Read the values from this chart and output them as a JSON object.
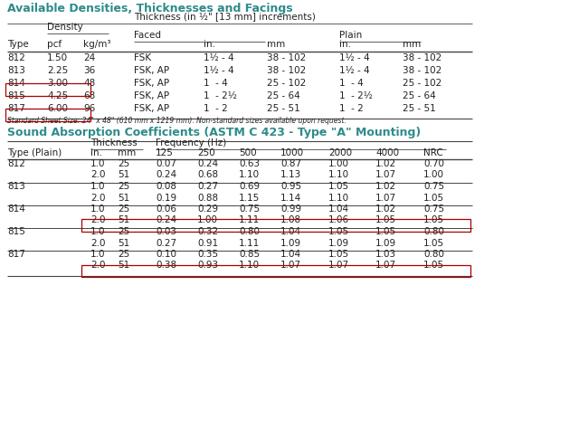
{
  "title1": "Available Densities, Thicknesses and Facings",
  "title2": "Sound Absorption Coefficients (ASTM C 423 - Type \"A\" Mounting)",
  "footnote": "Standard Sheet Size: 24\" x 48\" (610 mm x 1219 mm). Non-standard sizes available upon request.",
  "title_color": "#2e8b8b",
  "text_color": "#222222",
  "bg_color": "#ffffff",
  "table1": {
    "rows": [
      [
        "812",
        "1.50",
        "24",
        "FSK",
        "1½ - 4",
        "38 - 102",
        "1½ - 4",
        "38 - 102"
      ],
      [
        "813",
        "2.25",
        "36",
        "FSK, AP",
        "1½ - 4",
        "38 - 102",
        "1½ - 4",
        "38 - 102"
      ],
      [
        "814",
        "3.00",
        "48",
        "FSK, AP",
        "1  - 4",
        "25 - 102",
        "1  - 4",
        "25 - 102"
      ],
      [
        "815",
        "4.25",
        "68",
        "FSK, AP",
        "1  - 2½",
        "25 - 64",
        "1  - 2½",
        "25 - 64"
      ],
      [
        "817",
        "6.00",
        "96",
        "FSK, AP",
        "1  - 2",
        "25 - 51",
        "1  - 2",
        "25 - 51"
      ]
    ],
    "boxed_rows": [
      2,
      4
    ],
    "box_color": "#aa0000"
  },
  "table2": {
    "rows": [
      [
        "812",
        "1.0",
        "25",
        "0.07",
        "0.24",
        "0.63",
        "0.87",
        "1.00",
        "1.02",
        "0.70"
      ],
      [
        "",
        "2.0",
        "51",
        "0.24",
        "0.68",
        "1.10",
        "1.13",
        "1.10",
        "1.07",
        "1.00"
      ],
      [
        "813",
        "1.0",
        "25",
        "0.08",
        "0.27",
        "0.69",
        "0.95",
        "1.05",
        "1.02",
        "0.75"
      ],
      [
        "",
        "2.0",
        "51",
        "0.19",
        "0.88",
        "1.15",
        "1.14",
        "1.10",
        "1.07",
        "1.05"
      ],
      [
        "814",
        "1.0",
        "25",
        "0.06",
        "0.29",
        "0.75",
        "0.99",
        "1.04",
        "1.02",
        "0.75"
      ],
      [
        "",
        "2.0",
        "51",
        "0.24",
        "1.00",
        "1.11",
        "1.08",
        "1.06",
        "1.05",
        "1.05"
      ],
      [
        "815",
        "1.0",
        "25",
        "0.03",
        "0.32",
        "0.80",
        "1.04",
        "1.05",
        "1.05",
        "0.80"
      ],
      [
        "",
        "2.0",
        "51",
        "0.27",
        "0.91",
        "1.11",
        "1.09",
        "1.09",
        "1.09",
        "1.05"
      ],
      [
        "817",
        "1.0",
        "25",
        "0.10",
        "0.35",
        "0.85",
        "1.04",
        "1.05",
        "1.03",
        "0.80"
      ],
      [
        "",
        "2.0",
        "51",
        "0.38",
        "0.93",
        "1.10",
        "1.07",
        "1.07",
        "1.07",
        "1.05"
      ]
    ],
    "boxed_rows": [
      5,
      9
    ],
    "divider_after": [
      1,
      3,
      5,
      7
    ],
    "box_color": "#aa0000"
  }
}
